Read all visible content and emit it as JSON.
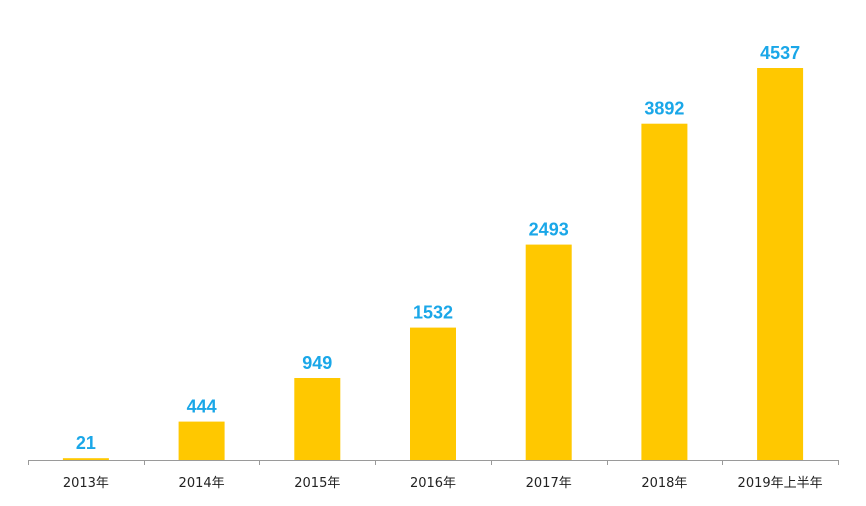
{
  "chart_data": {
    "type": "bar",
    "title": "",
    "xlabel": "",
    "ylabel": "",
    "categories": [
      "2013年",
      "2014年",
      "2015年",
      "2016年",
      "2017年",
      "2018年",
      "2019年上半年"
    ],
    "values": [
      21,
      444,
      949,
      1532,
      2493,
      3892,
      4537
    ],
    "data_labels": [
      "21",
      "444",
      "949",
      "1532",
      "2493",
      "3892",
      "4537"
    ],
    "ylim": [
      0,
      4537
    ],
    "grid": false,
    "legend": "none",
    "colors": {
      "bar": "#FFC800",
      "label": "#1AA7E8",
      "axis": "#9A9A9A"
    }
  }
}
